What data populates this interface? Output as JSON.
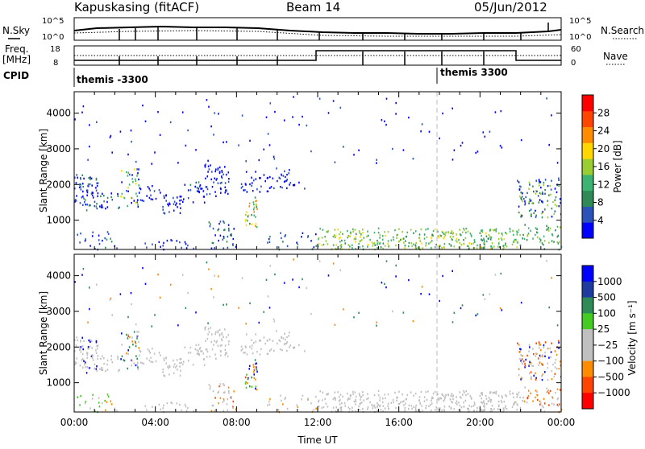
{
  "header": {
    "station": "Kapuskasing (fitACF)",
    "beam": "Beam 14",
    "date": "05/Jun/2012"
  },
  "summary": {
    "nsky_label": "N.Sky",
    "nsearch_label": "N.Search",
    "freq_label_1": "Freq.",
    "freq_label_2": "[MHz]",
    "nave_label": "Nave",
    "cpid_label": "CPID",
    "nsky_ticks": [
      "10^5",
      "10^0"
    ],
    "nsearch_ticks": [
      "10^5",
      "10^0"
    ],
    "freq_ticks": [
      "18",
      "8"
    ],
    "nave_ticks": [
      "60",
      "0"
    ],
    "cpid_segments": [
      {
        "label": "themis -3300",
        "start_hour": 0
      },
      {
        "label": "themis 3300",
        "start_hour": 18
      }
    ]
  },
  "colors": {
    "power": [
      "#0000ff",
      "#2a52b8",
      "#2e8b57",
      "#3cb371",
      "#9acd32",
      "#ffd700",
      "#ff8c00",
      "#ff4500",
      "#ff0000"
    ],
    "velocity": [
      "#0000ff",
      "#1e3ca0",
      "#2e8b57",
      "#44cc22",
      "#c0c0c0",
      "#c0c0c0",
      "#ff8c00",
      "#ff4500",
      "#ff0000"
    ]
  },
  "chart_data": [
    {
      "type": "heatmap",
      "name": "power",
      "ylabel": "Slant Range [km]",
      "ylim": [
        180,
        4600
      ],
      "y_ticks": [
        "1000",
        "2000",
        "3000",
        "4000"
      ],
      "x_ticks": [
        "00:00",
        "04:00",
        "08:00",
        "12:00",
        "16:00",
        "20:00",
        "00:00"
      ],
      "colorbar": {
        "label": "Power [dB]",
        "ticks": [
          "4",
          "8",
          "12",
          "16",
          "20",
          "24",
          "28"
        ],
        "range": [
          0,
          32
        ]
      }
    },
    {
      "type": "heatmap",
      "name": "velocity",
      "ylabel": "Slant Range [km]",
      "xlabel": "Time UT",
      "ylim": [
        180,
        4600
      ],
      "y_ticks": [
        "1000",
        "2000",
        "3000",
        "4000"
      ],
      "x_ticks": [
        "00:00",
        "04:00",
        "08:00",
        "12:00",
        "16:00",
        "20:00",
        "00:00"
      ],
      "colorbar": {
        "label": "Velocity [m s⁻¹]",
        "ticks": [
          "1000",
          "500",
          "100",
          "25",
          "−25",
          "−100",
          "−500",
          "−1000"
        ]
      }
    }
  ]
}
